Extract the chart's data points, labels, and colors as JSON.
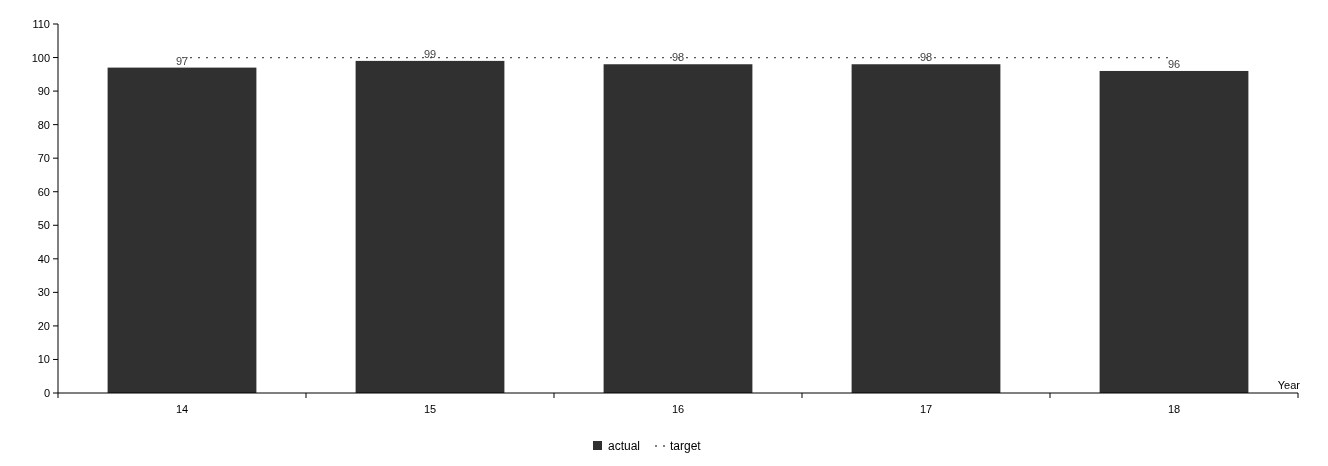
{
  "chart_data": {
    "type": "bar",
    "xlabel": "Year",
    "categories": [
      "14",
      "15",
      "16",
      "17",
      "18"
    ],
    "series": [
      {
        "name": "actual",
        "color": "#303030",
        "values": [
          97,
          99,
          98,
          98,
          96
        ],
        "value_labels": [
          "97",
          "99",
          "98",
          "98",
          "96"
        ]
      },
      {
        "name": "target",
        "type": "line",
        "color": "#555555",
        "line_style": "dotted",
        "values": [
          100,
          100,
          100,
          100,
          100
        ]
      }
    ],
    "ylim": [
      0,
      110
    ],
    "yticks": [
      0,
      10,
      20,
      30,
      40,
      50,
      60,
      70,
      80,
      90,
      100,
      110
    ],
    "legend": "bottom",
    "grid": false
  }
}
